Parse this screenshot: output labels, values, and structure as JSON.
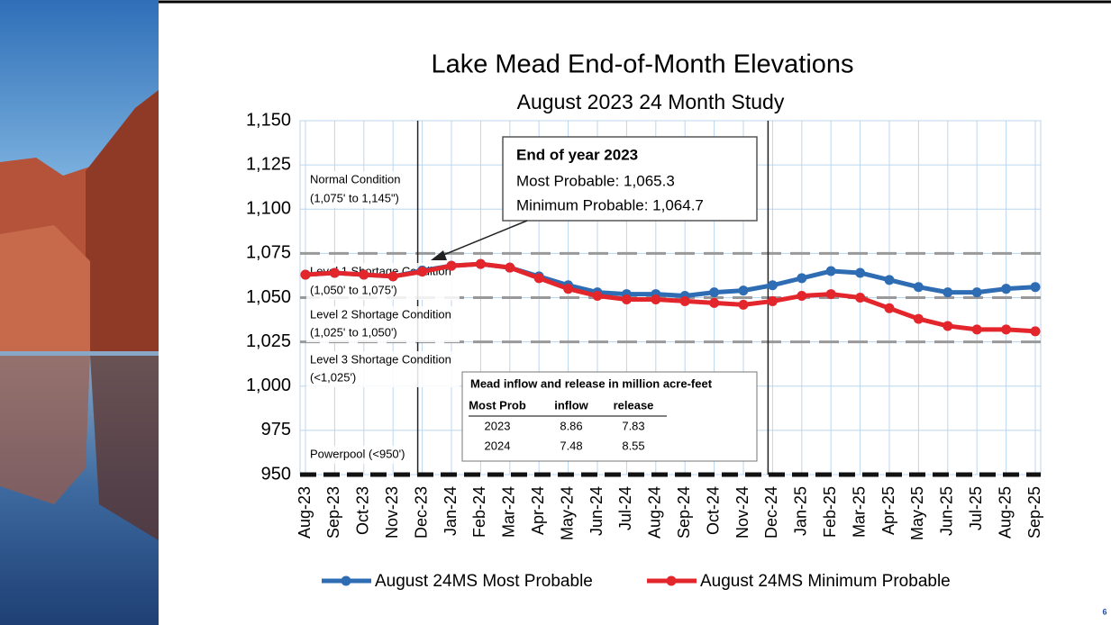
{
  "chart_data": {
    "type": "line",
    "title": "Lake Mead End-of-Month Elevations",
    "subtitle": "August 2023  24 Month Study",
    "categories": [
      "Aug-23",
      "Sep-23",
      "Oct-23",
      "Nov-23",
      "Dec-23",
      "Jan-24",
      "Feb-24",
      "Mar-24",
      "Apr-24",
      "May-24",
      "Jun-24",
      "Jul-24",
      "Aug-24",
      "Sep-24",
      "Oct-24",
      "Nov-24",
      "Dec-24",
      "Jan-25",
      "Feb-25",
      "Mar-25",
      "Apr-25",
      "May-25",
      "Jun-25",
      "Jul-25",
      "Aug-25",
      "Sep-25"
    ],
    "series": [
      {
        "name": "August 24MS Most Probable",
        "color": "#2e6db4",
        "values": [
          1063,
          1064,
          1063,
          1062,
          1065.3,
          1068,
          1069,
          1067,
          1062,
          1057,
          1053,
          1052,
          1052,
          1051,
          1053,
          1054,
          1057,
          1061,
          1065,
          1064,
          1060,
          1056,
          1053,
          1053,
          1055,
          1056
        ]
      },
      {
        "name": "August 24MS Minimum Probable",
        "color": "#e3262b",
        "values": [
          1063,
          1064,
          1063,
          1062,
          1064.7,
          1068,
          1069,
          1067,
          1061,
          1055,
          1051,
          1049,
          1049,
          1048,
          1047,
          1046,
          1048,
          1051,
          1052,
          1050,
          1044,
          1038,
          1034,
          1032,
          1032,
          1031
        ]
      }
    ],
    "ylim": [
      950,
      1150
    ],
    "yticks": [
      {
        "value": 950,
        "label": "950"
      },
      {
        "value": 975,
        "label": "975"
      },
      {
        "value": 1000,
        "label": "1,000"
      },
      {
        "value": 1025,
        "label": "1,025"
      },
      {
        "value": 1050,
        "label": "1,050"
      },
      {
        "value": 1075,
        "label": "1,075"
      },
      {
        "value": 1100,
        "label": "1,100"
      },
      {
        "value": 1125,
        "label": "1,125"
      },
      {
        "value": 1150,
        "label": "1,150"
      }
    ],
    "grid": true,
    "reference_lines": [
      1075,
      1050,
      1025,
      950
    ],
    "vertical_lines": [
      "Dec-23",
      "Dec-24"
    ],
    "conditions": [
      {
        "name": "Normal Condition",
        "range": "(1,075' to 1,145\")"
      },
      {
        "name": "Level 1 Shortage Condition",
        "range": "(1,050' to 1,075')"
      },
      {
        "name": "Level 2 Shortage Condition",
        "range": "(1,025' to 1,050')"
      },
      {
        "name": "Level 3 Shortage Condition",
        "range": "(<1,025')"
      },
      {
        "name": "Powerpool (<950')"
      }
    ],
    "callout": {
      "title": "End of year 2023",
      "lines": [
        "Most Probable: 1,065.3",
        "Minimum Probable: 1,064.7"
      ]
    },
    "table": {
      "title": "Mead inflow and release in million acre-feet",
      "header": [
        "Most Prob",
        "inflow",
        "release"
      ],
      "rows": [
        [
          2023,
          8.86,
          7.83
        ],
        [
          2024,
          7.48,
          8.55
        ]
      ]
    },
    "page_number": "6"
  }
}
